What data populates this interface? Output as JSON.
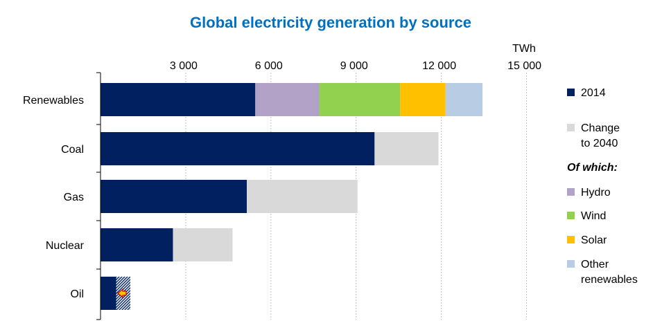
{
  "chart_data": {
    "type": "bar",
    "orientation": "horizontal",
    "stacked": true,
    "title": "Global electricity generation by source",
    "unit": "TWh",
    "categories": [
      "Renewables",
      "Coal",
      "Gas",
      "Nuclear",
      "Oil"
    ],
    "xlim": [
      0,
      15000
    ],
    "xticks": [
      3000,
      6000,
      9000,
      12000,
      15000
    ],
    "xtick_labels": [
      "3 000",
      "6 000",
      "9 000",
      "12 000",
      "15 000"
    ],
    "grid": true,
    "legend_position": "right",
    "segments": [
      {
        "category": "Renewables",
        "series": "2014",
        "start": 0,
        "end": 5450
      },
      {
        "category": "Renewables",
        "series": "Hydro",
        "start": 5450,
        "end": 7700
      },
      {
        "category": "Renewables",
        "series": "Wind",
        "start": 7700,
        "end": 10550
      },
      {
        "category": "Renewables",
        "series": "Solar",
        "start": 10550,
        "end": 12150
      },
      {
        "category": "Renewables",
        "series": "Other renewables",
        "start": 12150,
        "end": 13450
      },
      {
        "category": "Coal",
        "series": "2014",
        "start": 0,
        "end": 9650
      },
      {
        "category": "Coal",
        "series": "Change to 2040",
        "start": 9650,
        "end": 11900
      },
      {
        "category": "Gas",
        "series": "2014",
        "start": 0,
        "end": 5150
      },
      {
        "category": "Gas",
        "series": "Change to 2040",
        "start": 5150,
        "end": 9050
      },
      {
        "category": "Nuclear",
        "series": "2014",
        "start": 0,
        "end": 2550
      },
      {
        "category": "Nuclear",
        "series": "Change to 2040",
        "start": 2550,
        "end": 4650
      },
      {
        "category": "Oil",
        "series": "2014",
        "start": 0,
        "end": 1050,
        "hatched": true
      },
      {
        "category": "Oil",
        "series": "2014",
        "start": 0,
        "end": 550
      }
    ],
    "oil_decline_arrow": true,
    "legend": [
      {
        "label": "2014",
        "color": "#002060"
      },
      {
        "label": "Change to 2040",
        "color": "#d9d9d9"
      },
      {
        "label": "Of which:",
        "heading": true
      },
      {
        "label": "Hydro",
        "color": "#b3a2c7"
      },
      {
        "label": "Wind",
        "color": "#92d050"
      },
      {
        "label": "Solar",
        "color": "#ffc000"
      },
      {
        "label": "Other renewables",
        "color": "#b8cce4"
      }
    ],
    "colors": {
      "2014": "#002060",
      "Change to 2040": "#d9d9d9",
      "Hydro": "#b3a2c7",
      "Wind": "#92d050",
      "Solar": "#ffc000",
      "Other renewables": "#b8cce4",
      "title": "#0070c0",
      "gridline": "#bfbfbf",
      "axis": "#000000"
    }
  }
}
